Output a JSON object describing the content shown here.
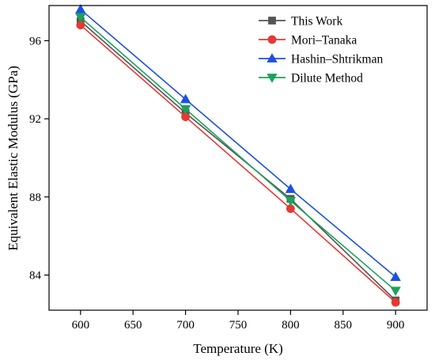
{
  "chart_data": {
    "type": "line",
    "xlabel": "Temperature (K)",
    "ylabel": "Equivalent Elastic Modulus (GPa)",
    "x": [
      600,
      700,
      800,
      900
    ],
    "xlim": [
      570,
      930
    ],
    "ylim": [
      82.2,
      97.8
    ],
    "xticks": [
      "600",
      "650",
      "700",
      "750",
      "800",
      "850",
      "900"
    ],
    "yticks": [
      "84",
      "88",
      "92",
      "96"
    ],
    "grid": false,
    "legend_position": "top-right",
    "series": [
      {
        "name": "This Work",
        "values": [
          97.0,
          92.3,
          87.9,
          82.7
        ],
        "color": "#555555",
        "marker": "square"
      },
      {
        "name": "Mori–Tanaka",
        "values": [
          96.8,
          92.1,
          87.4,
          82.6
        ],
        "color": "#e53935",
        "marker": "circle"
      },
      {
        "name": "Hashin–Shtrikman",
        "values": [
          97.6,
          93.0,
          88.4,
          83.9
        ],
        "color": "#1e50e0",
        "marker": "triangle-up"
      },
      {
        "name": "Dilute Method",
        "values": [
          97.2,
          92.5,
          87.8,
          83.2
        ],
        "color": "#1aa35a",
        "marker": "triangle-down"
      }
    ]
  }
}
